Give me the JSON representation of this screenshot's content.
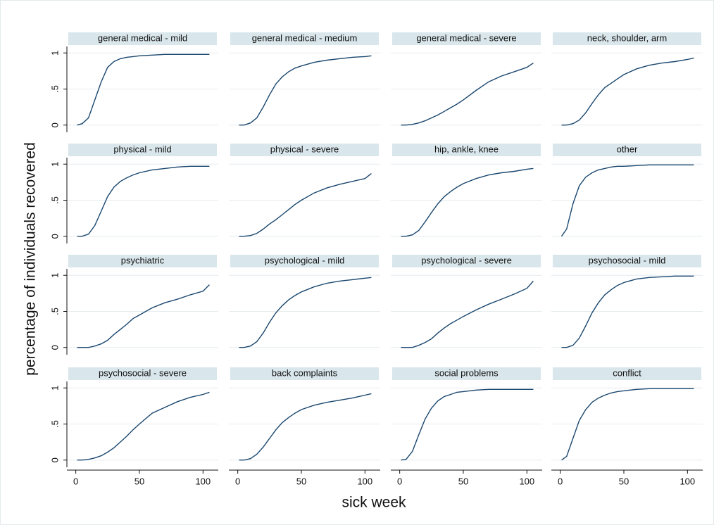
{
  "chart_data": {
    "type": "line",
    "xlabel": "sick week",
    "ylabel": "percentage of individuals recovered",
    "color": "#1a476f",
    "grid": true,
    "xlim": [
      -7,
      112
    ],
    "ylim": [
      -0.1,
      1.09
    ],
    "xticks": [
      0,
      50,
      100
    ],
    "yticks": [
      0,
      {
        "value": 0.5,
        "label": ".5"
      },
      1
    ],
    "x": [
      1,
      5,
      10,
      15,
      20,
      25,
      30,
      35,
      40,
      45,
      50,
      60,
      70,
      80,
      90,
      100,
      105
    ],
    "panels": [
      {
        "title": "general medical - mild",
        "values": [
          0,
          0.02,
          0.1,
          0.35,
          0.6,
          0.8,
          0.88,
          0.92,
          0.94,
          0.95,
          0.96,
          0.97,
          0.98,
          0.98,
          0.98,
          0.98,
          0.98
        ]
      },
      {
        "title": "general medical - medium",
        "values": [
          0,
          0,
          0.03,
          0.1,
          0.25,
          0.42,
          0.57,
          0.67,
          0.74,
          0.79,
          0.82,
          0.87,
          0.9,
          0.92,
          0.94,
          0.95,
          0.96
        ]
      },
      {
        "title": "general medical - severe",
        "values": [
          0,
          0,
          0.01,
          0.03,
          0.06,
          0.1,
          0.14,
          0.19,
          0.24,
          0.29,
          0.35,
          0.48,
          0.6,
          0.68,
          0.74,
          0.8,
          0.86
        ]
      },
      {
        "title": "neck, shoulder, arm",
        "values": [
          0,
          0,
          0.02,
          0.07,
          0.17,
          0.3,
          0.42,
          0.52,
          0.58,
          0.64,
          0.7,
          0.78,
          0.83,
          0.86,
          0.88,
          0.91,
          0.93
        ]
      },
      {
        "title": "physical - mild",
        "values": [
          0,
          0,
          0.03,
          0.15,
          0.35,
          0.55,
          0.68,
          0.76,
          0.81,
          0.85,
          0.88,
          0.92,
          0.94,
          0.96,
          0.97,
          0.97,
          0.97
        ]
      },
      {
        "title": "physical - severe",
        "values": [
          0,
          0,
          0.01,
          0.04,
          0.1,
          0.17,
          0.23,
          0.3,
          0.37,
          0.44,
          0.5,
          0.6,
          0.67,
          0.72,
          0.76,
          0.8,
          0.87
        ]
      },
      {
        "title": "hip, ankle, knee",
        "values": [
          0,
          0,
          0.02,
          0.08,
          0.2,
          0.33,
          0.45,
          0.55,
          0.62,
          0.68,
          0.73,
          0.8,
          0.85,
          0.88,
          0.9,
          0.93,
          0.94
        ]
      },
      {
        "title": "other",
        "values": [
          0,
          0.1,
          0.45,
          0.7,
          0.82,
          0.88,
          0.92,
          0.94,
          0.96,
          0.97,
          0.97,
          0.98,
          0.99,
          0.99,
          0.99,
          0.99,
          0.99
        ]
      },
      {
        "title": "psychiatric",
        "values": [
          0,
          0,
          0,
          0.02,
          0.05,
          0.1,
          0.18,
          0.25,
          0.32,
          0.4,
          0.45,
          0.55,
          0.62,
          0.67,
          0.73,
          0.78,
          0.87
        ]
      },
      {
        "title": "psychological - mild",
        "values": [
          0,
          0,
          0.02,
          0.08,
          0.2,
          0.35,
          0.48,
          0.58,
          0.66,
          0.72,
          0.77,
          0.84,
          0.89,
          0.92,
          0.94,
          0.96,
          0.97
        ]
      },
      {
        "title": "psychological - severe",
        "values": [
          0,
          0,
          0,
          0.03,
          0.07,
          0.12,
          0.2,
          0.27,
          0.33,
          0.38,
          0.43,
          0.52,
          0.6,
          0.67,
          0.74,
          0.82,
          0.92
        ]
      },
      {
        "title": "psychosocial - mild",
        "values": [
          0,
          0,
          0.03,
          0.13,
          0.3,
          0.48,
          0.62,
          0.73,
          0.8,
          0.86,
          0.9,
          0.95,
          0.97,
          0.98,
          0.99,
          0.99,
          0.99
        ]
      },
      {
        "title": "psychosocial - severe",
        "values": [
          0,
          0,
          0.01,
          0.03,
          0.06,
          0.11,
          0.17,
          0.25,
          0.33,
          0.42,
          0.5,
          0.65,
          0.73,
          0.81,
          0.87,
          0.91,
          0.94
        ]
      },
      {
        "title": "back complaints",
        "values": [
          0,
          0,
          0.02,
          0.08,
          0.18,
          0.3,
          0.42,
          0.52,
          0.59,
          0.65,
          0.7,
          0.76,
          0.8,
          0.83,
          0.86,
          0.9,
          0.92
        ]
      },
      {
        "title": "social problems",
        "values": [
          0,
          0.01,
          0.12,
          0.35,
          0.57,
          0.72,
          0.82,
          0.88,
          0.91,
          0.94,
          0.95,
          0.97,
          0.98,
          0.98,
          0.98,
          0.98,
          0.98
        ]
      },
      {
        "title": "conflict",
        "values": [
          0,
          0.05,
          0.3,
          0.55,
          0.7,
          0.8,
          0.86,
          0.9,
          0.93,
          0.95,
          0.96,
          0.98,
          0.99,
          0.99,
          0.99,
          0.99,
          0.99
        ]
      }
    ]
  }
}
